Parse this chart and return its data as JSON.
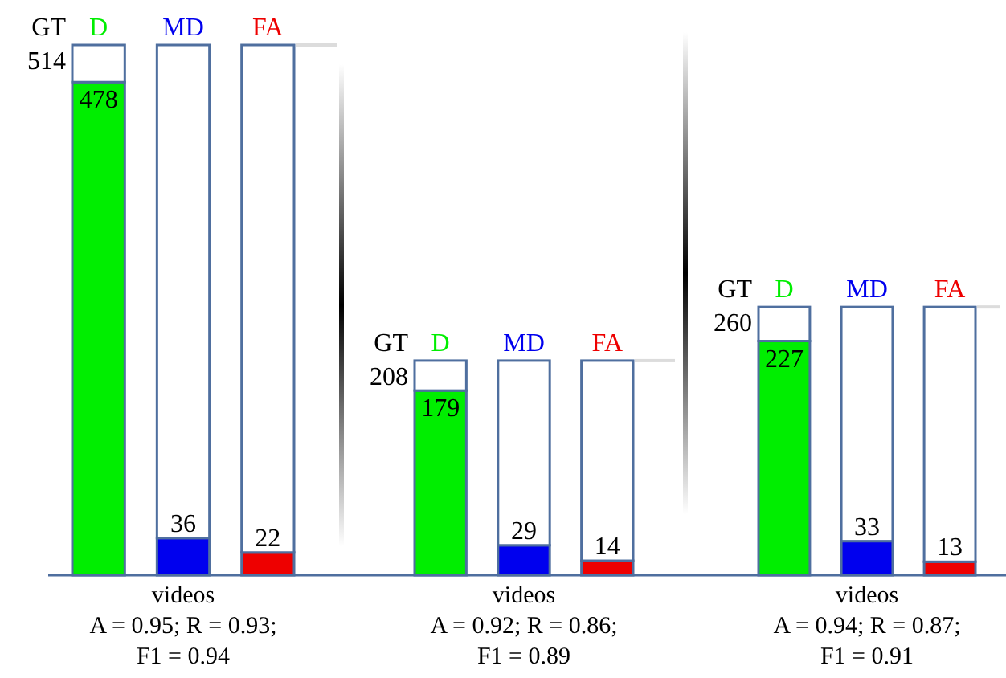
{
  "chart_data": [
    {
      "type": "bar",
      "xlabel": "videos",
      "annotations": [
        "GT 514",
        "A = 0.95; R = 0.93;",
        "F1 = 0.94"
      ],
      "categories": [
        "D",
        "MD",
        "FA"
      ],
      "tick_labels": "x",
      "stacked": true,
      "series": [
        {
          "colors": [
            "#00ee00",
            "#0000ee",
            "#ee0000"
          ],
          "values": [
            478,
            36,
            22
          ],
          "value_labels": [
            "478",
            "36",
            "22"
          ]
        },
        {
          "color": "#ffffff",
          "values": [
            36,
            478,
            492
          ]
        }
      ]
    },
    {
      "type": "bar",
      "xlabel": "videos",
      "annotations": [
        "GT 208",
        "A = 0.92; R = 0.86;",
        "F1 = 0.89"
      ],
      "categories": [
        "D",
        "MD",
        "FA"
      ],
      "tick_labels": "x",
      "stacked": true,
      "series": [
        {
          "colors": [
            "#00ee00",
            "#0000ee",
            "#ee0000"
          ],
          "values": [
            179,
            29,
            14
          ],
          "value_labels": [
            "179",
            "29",
            "14"
          ]
        },
        {
          "color": "#ffffff",
          "values": [
            29,
            179,
            194
          ]
        }
      ]
    },
    {
      "type": "bar",
      "xlabel": "videos",
      "annotations": [
        "GT 260",
        "A = 0.94; R = 0.87;",
        "F1 = 0.91"
      ],
      "categories": [
        "D",
        "MD",
        "FA"
      ],
      "tick_labels": "x",
      "stacked": true,
      "series": [
        {
          "colors": [
            "#00ee00",
            "#0000ee",
            "#ee0000"
          ],
          "values": [
            227,
            33,
            13
          ],
          "value_labels": [
            "227",
            "33",
            "13"
          ]
        },
        {
          "color": "#ffffff",
          "values": [
            33,
            227,
            247
          ]
        }
      ]
    }
  ]
}
